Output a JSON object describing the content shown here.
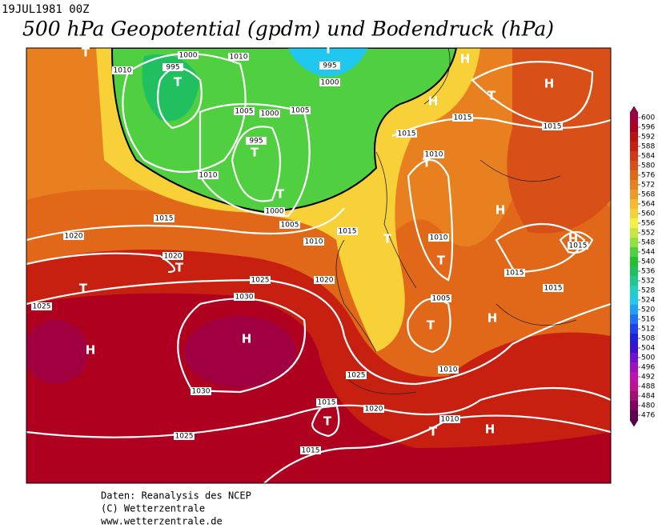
{
  "header": {
    "date": "19JUL1981 00Z",
    "title": "500 hPa Geopotential (gpdm) und Bodendruck (hPa)"
  },
  "colorbar": {
    "ticks": [
      600,
      596,
      592,
      588,
      584,
      580,
      576,
      572,
      568,
      564,
      560,
      556,
      552,
      548,
      544,
      540,
      536,
      532,
      528,
      524,
      520,
      516,
      512,
      508,
      504,
      500,
      496,
      492,
      488,
      484,
      480,
      476
    ],
    "colors": [
      "#a00040",
      "#b00020",
      "#c01010",
      "#c82010",
      "#d03818",
      "#d85018",
      "#e06818",
      "#e88020",
      "#f09828",
      "#f8b830",
      "#f8d038",
      "#f8f040",
      "#c8e840",
      "#90e040",
      "#50d040",
      "#20c030",
      "#20c060",
      "#20c890",
      "#20d0c0",
      "#20c8f0",
      "#20a0f8",
      "#2070f8",
      "#2040f0",
      "#2020e0",
      "#4010d0",
      "#7010d0",
      "#a010c0",
      "#c010b0",
      "#c01090",
      "#a01070",
      "#800060",
      "#600050"
    ]
  },
  "map": {
    "centers": [
      "H",
      "H",
      "H",
      "H",
      "H",
      "H",
      "H",
      "H",
      "H",
      "T",
      "T",
      "T",
      "T",
      "T",
      "T",
      "T",
      "T",
      "T",
      "T",
      "T",
      "T",
      "T",
      "T"
    ],
    "isobar_labels": [
      "1010",
      "995",
      "1000",
      "1010",
      "995",
      "1000",
      "1005",
      "1000",
      "1005",
      "995",
      "1010",
      "1000",
      "1005",
      "1015",
      "1020",
      "1010",
      "1015",
      "1020",
      "1025",
      "1020",
      "1030",
      "1025",
      "1015",
      "1015",
      "1015",
      "1010",
      "1010",
      "1015",
      "1015",
      "1015",
      "1005",
      "1010",
      "1025",
      "1030",
      "1015",
      "1020",
      "1010",
      "1025",
      "1015"
    ]
  },
  "footer": {
    "lines": [
      "Daten: Reanalysis des NCEP",
      "(C) Wetterzentrale",
      "www.wetterzentrale.de"
    ]
  }
}
